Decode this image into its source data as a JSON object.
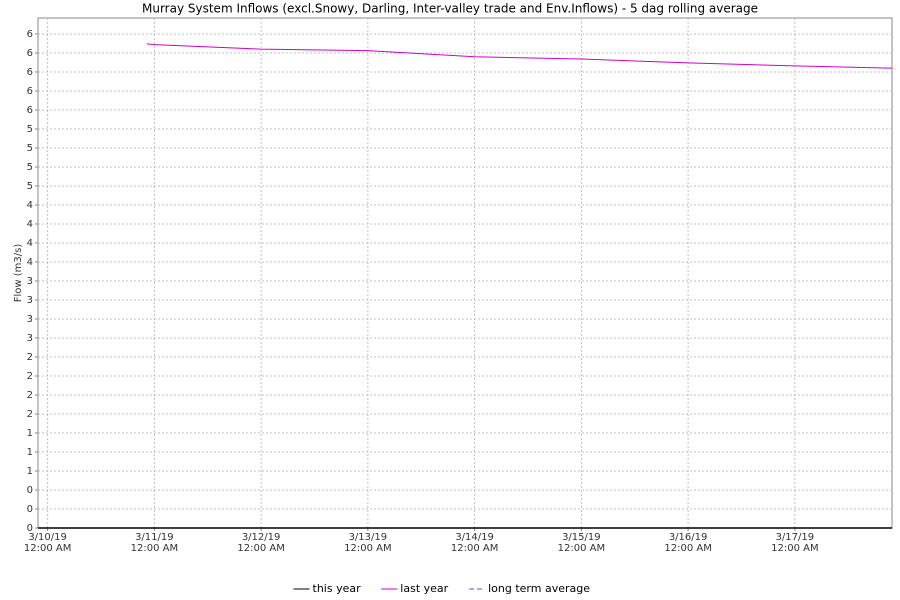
{
  "chart_data": {
    "type": "line",
    "title": "Murray System Inflows (excl.Snowy, Darling, Inter-valley trade and Env.Inflows) - 5 dag rolling average",
    "y_label": "Flow (m3/s)",
    "x": [
      0.93,
      1,
      2,
      3,
      4,
      5,
      6,
      7,
      7.91
    ],
    "xlim": [
      -0.09,
      7.91
    ],
    "xticks": [
      {
        "value": 0,
        "label": "3/10/19 12:00 AM"
      },
      {
        "value": 1,
        "label": "3/11/19 12:00 AM"
      },
      {
        "value": 2,
        "label": "3/12/19 12:00 AM"
      },
      {
        "value": 3,
        "label": "3/13/19 12:00 AM"
      },
      {
        "value": 4,
        "label": "3/14/19 12:00 AM"
      },
      {
        "value": 5,
        "label": "3/15/19 12:00 AM"
      },
      {
        "value": 6,
        "label": "3/16/19 12:00 AM"
      },
      {
        "value": 7,
        "label": "3/17/19 12:00 AM"
      }
    ],
    "ylim": [
      0,
      6.71
    ],
    "yticks": [
      0,
      {
        "value": 0.25,
        "label": "0"
      },
      {
        "value": 0.5,
        "label": "0"
      },
      {
        "value": 0.75,
        "label": "1"
      },
      1,
      {
        "value": 1.25,
        "label": "1"
      },
      {
        "value": 1.5,
        "label": "2"
      },
      {
        "value": 1.75,
        "label": "2"
      },
      2,
      {
        "value": 2.25,
        "label": "2"
      },
      {
        "value": 2.5,
        "label": "3"
      },
      {
        "value": 2.75,
        "label": "3"
      },
      3,
      {
        "value": 3.25,
        "label": "3"
      },
      {
        "value": 3.5,
        "label": "4"
      },
      {
        "value": 3.75,
        "label": "4"
      },
      4,
      {
        "value": 4.25,
        "label": "4"
      },
      {
        "value": 4.5,
        "label": "5"
      },
      {
        "value": 4.75,
        "label": "5"
      },
      5,
      {
        "value": 5.25,
        "label": "5"
      },
      {
        "value": 5.5,
        "label": "6"
      },
      {
        "value": 5.75,
        "label": "6"
      },
      6,
      {
        "value": 6.25,
        "label": "6"
      },
      {
        "value": 6.5,
        "label": "6"
      }
    ],
    "grid": true,
    "legend": "bottom",
    "series": [
      {
        "name": "this year",
        "color": "#000000",
        "dashed": false,
        "values": [
          null,
          null,
          null,
          null,
          null,
          null,
          null,
          null,
          null
        ]
      },
      {
        "name": "last year",
        "color": "#cc00cc",
        "dashed": false,
        "values": [
          6.37,
          6.36,
          6.3,
          6.28,
          6.2,
          6.17,
          6.12,
          6.08,
          6.05
        ]
      },
      {
        "name": "long term average",
        "color": "#9933cc",
        "dashed": true,
        "values": [
          null,
          null,
          null,
          null,
          null,
          null,
          null,
          null,
          null
        ]
      }
    ]
  }
}
